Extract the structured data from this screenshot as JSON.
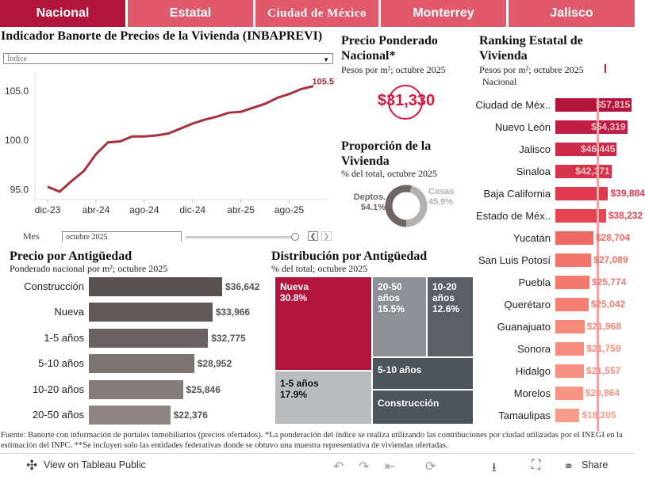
{
  "tabs": [
    {
      "label": "Nacional",
      "active": true
    },
    {
      "label": "Estatal",
      "active": false
    },
    {
      "label": "Ciudad de México",
      "active": false
    },
    {
      "label": "Monterrey",
      "active": false
    },
    {
      "label": "Jalisco",
      "active": false
    }
  ],
  "index_panel": {
    "title": "Indicador Banorte de Precios de la Vivienda (INBAPREVI)",
    "selector_value": "Índice",
    "month_label": "Mes",
    "month_value": "octubre 2025",
    "chart_data": {
      "type": "line",
      "title": "Indicador Banorte de Precios de la Vivienda (INBAPREVI)",
      "x_tick_labels": [
        "dic-23",
        "abr-24",
        "ago-24",
        "dic-24",
        "abr-25",
        "ago-25"
      ],
      "x": [
        "dic-23",
        "ene-24",
        "feb-24",
        "mar-24",
        "abr-24",
        "may-24",
        "jun-24",
        "jul-24",
        "ago-24",
        "sep-24",
        "oct-24",
        "nov-24",
        "dic-24",
        "ene-25",
        "feb-25",
        "mar-25",
        "abr-25",
        "may-25",
        "jun-25",
        "jul-25",
        "ago-25",
        "sep-25",
        "oct-25"
      ],
      "values": [
        95.3,
        94.8,
        95.9,
        96.9,
        98.6,
        99.8,
        99.9,
        100.4,
        100.4,
        100.5,
        100.7,
        101.2,
        101.7,
        102.1,
        102.4,
        102.8,
        102.9,
        103.3,
        103.7,
        104.3,
        104.7,
        105.2,
        105.5
      ],
      "y_ticks": [
        "95.0",
        "100.0",
        "105.0"
      ],
      "ylim": [
        94.0,
        107.0
      ],
      "last_label": "105.5",
      "color": "#a8323c"
    }
  },
  "weighted_price": {
    "title": "Precio Ponderado Nacional*",
    "subtitle": "Pesos por m²; octubre 2025",
    "value": "$31,330",
    "color": "#d7193e"
  },
  "proportion": {
    "title": "Proporción de la Vivienda",
    "subtitle": "% del total, octubre 2025",
    "chart_data": {
      "type": "pie",
      "slices": [
        {
          "name": "Deptos.",
          "value": 54.1,
          "label": "54.1%",
          "color": "#6e6565"
        },
        {
          "name": "Casas",
          "value": 45.9,
          "label": "45.9%",
          "color": "#b4b0ae"
        }
      ]
    }
  },
  "ranking": {
    "title": "Ranking Estatal de Vivienda",
    "subtitle": "Pesos por m²; octubre 2025",
    "legend_label": "Nacional",
    "reference_line_color": "#f4a1a8",
    "chart_data": {
      "type": "bar",
      "orientation": "horizontal",
      "reference_value": 31330,
      "xlim": [
        0,
        60000
      ],
      "categories": [
        "Ciudad de Méx..",
        "Nuevo León",
        "Jalisco",
        "Sinaloa",
        "Baja California",
        "Estado de Méx..",
        "Yucatán",
        "San Luis Potosí",
        "Puebla",
        "Querétaro",
        "Guanajuato",
        "Sonora",
        "Hidalgo",
        "Morelos",
        "Tamaulipas"
      ],
      "values": [
        57815,
        54319,
        46445,
        42371,
        39884,
        38232,
        28704,
        27089,
        25774,
        25042,
        21968,
        21759,
        21557,
        20864,
        18205
      ],
      "labels": [
        "$57,815",
        "$54,319",
        "$46,445",
        "$42,371",
        "$39,884",
        "$38,232",
        "$28,704",
        "$27,089",
        "$25,774",
        "$25,042",
        "$21,968",
        "$21,759",
        "$21,557",
        "$20,864",
        "$18,205"
      ],
      "colors": [
        "#b3143c",
        "#bf1d43",
        "#cc2a48",
        "#d6344c",
        "#e03a4e",
        "#e54652",
        "#ef6a63",
        "#f17468",
        "#f3796d",
        "#f47e70",
        "#f58a7b",
        "#f68d7e",
        "#f69080",
        "#f79482",
        "#f89c8a"
      ]
    }
  },
  "age_price": {
    "title": "Precio por Antigüedad",
    "subtitle": "Ponderado nacional por m²; octubre 2025",
    "chart_data": {
      "type": "bar",
      "orientation": "horizontal",
      "xlim": [
        0,
        40000
      ],
      "categories": [
        "Construcción",
        "Nueva",
        "1-5 años",
        "5-10 años",
        "10-20 años",
        "20-50 años"
      ],
      "values": [
        36642,
        33966,
        32775,
        28952,
        25846,
        22376
      ],
      "labels": [
        "$36,642",
        "$33,966",
        "$32,775",
        "$28,952",
        "$25,846",
        "$22,376"
      ],
      "colors": [
        "#5a5250",
        "#625957",
        "#6a6260",
        "#7d7472",
        "#857c7a",
        "#8e8583"
      ]
    }
  },
  "age_distribution": {
    "title": "Distribución por Antigüedad",
    "subtitle": "% del total; octubre 2025",
    "chart_data": {
      "type": "treemap",
      "items": [
        {
          "name": "Nueva",
          "value": 30.8,
          "label": "30.8%",
          "color": "#b3143c"
        },
        {
          "name": "20-50 años",
          "value": 15.5,
          "label": "15.5%",
          "color": "#8d9196"
        },
        {
          "name": "10-20 años",
          "value": 12.6,
          "label": "12.6%",
          "color": "#596068"
        },
        {
          "name": "1-5 años",
          "value": 17.9,
          "label": "17.9%",
          "color": "#b8bcbe"
        },
        {
          "name": "5-10 años",
          "value": null,
          "label": "",
          "color": "#4c545e"
        },
        {
          "name": "Construcción",
          "value": null,
          "label": "",
          "color": "#4c545e"
        }
      ]
    }
  },
  "footer": {
    "note": "Fuente: Banorte con información de portales inmobiliarios (precios ofertados). *La ponderación del índice se realiza utilizando las contribuciones por ciudad utilizadas por el INEGI en la estimación del INPC. **Se incluyen solo las entidades federativas donde se obtuvo una muestra representativa de viviendas ofertadas.",
    "view_label": "View on Tableau Public",
    "share_label": "Share"
  }
}
